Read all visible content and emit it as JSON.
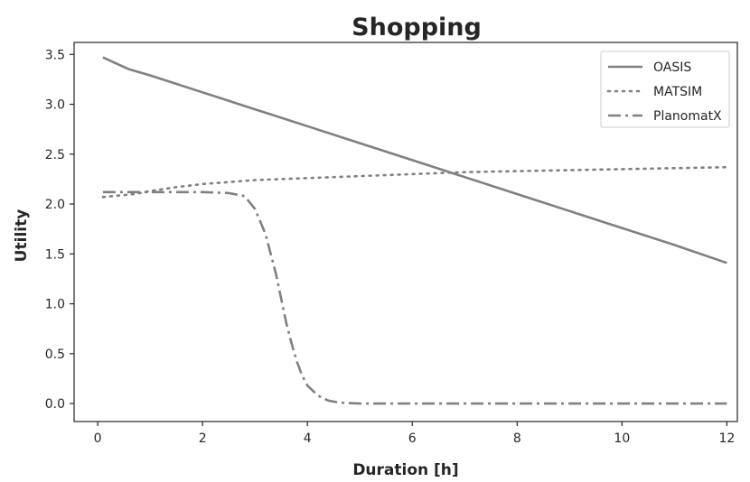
{
  "chart_data": {
    "type": "line",
    "title": "Shopping",
    "xlabel": "Duration [h]",
    "ylabel": "Utility",
    "xlim": [
      -0.45,
      12.2
    ],
    "ylim": [
      -0.18,
      3.62
    ],
    "xticks": [
      0,
      2,
      4,
      6,
      8,
      10,
      12
    ],
    "xtick_labels": [
      "0",
      "2",
      "4",
      "6",
      "8",
      "10",
      "12"
    ],
    "yticks": [
      0.0,
      0.5,
      1.0,
      1.5,
      2.0,
      2.5,
      3.0,
      3.5
    ],
    "ytick_labels": [
      "0.0",
      "0.5",
      "1.0",
      "1.5",
      "2.0",
      "2.5",
      "3.0",
      "3.5"
    ],
    "grid": false,
    "legend_position": "top-right",
    "line_color": "#808080",
    "series": [
      {
        "name": "OASIS",
        "style": "solid",
        "x": [
          0.1,
          0.6,
          1,
          2,
          3,
          4,
          5,
          6,
          7,
          8,
          9,
          10,
          11,
          12
        ],
        "y": [
          3.47,
          3.35,
          3.29,
          3.12,
          2.95,
          2.78,
          2.61,
          2.44,
          2.27,
          2.1,
          1.93,
          1.76,
          1.59,
          1.41
        ]
      },
      {
        "name": "MATSIM",
        "style": "dotted",
        "x": [
          0.1,
          0.3,
          0.5,
          0.7,
          1,
          1.5,
          2,
          3,
          4,
          5,
          6,
          7,
          8,
          9,
          10,
          11,
          12
        ],
        "y": [
          2.07,
          2.08,
          2.09,
          2.1,
          2.13,
          2.17,
          2.2,
          2.24,
          2.26,
          2.28,
          2.3,
          2.32,
          2.33,
          2.34,
          2.35,
          2.36,
          2.37
        ]
      },
      {
        "name": "PlanomatX",
        "style": "dashdot",
        "x": [
          0.1,
          0.5,
          1,
          1.5,
          2,
          2.5,
          2.8,
          3,
          3.2,
          3.4,
          3.5,
          3.6,
          3.7,
          3.8,
          3.9,
          4,
          4.2,
          4.4,
          4.6,
          4.8,
          5,
          6,
          7,
          8,
          9,
          10,
          11,
          12
        ],
        "y": [
          2.12,
          2.12,
          2.12,
          2.12,
          2.12,
          2.11,
          2.08,
          1.95,
          1.7,
          1.3,
          1.05,
          0.8,
          0.6,
          0.42,
          0.28,
          0.18,
          0.08,
          0.03,
          0.01,
          0.005,
          0.0,
          0.0,
          0.0,
          0.0,
          0.0,
          0.0,
          0.0,
          0.0
        ]
      }
    ]
  }
}
